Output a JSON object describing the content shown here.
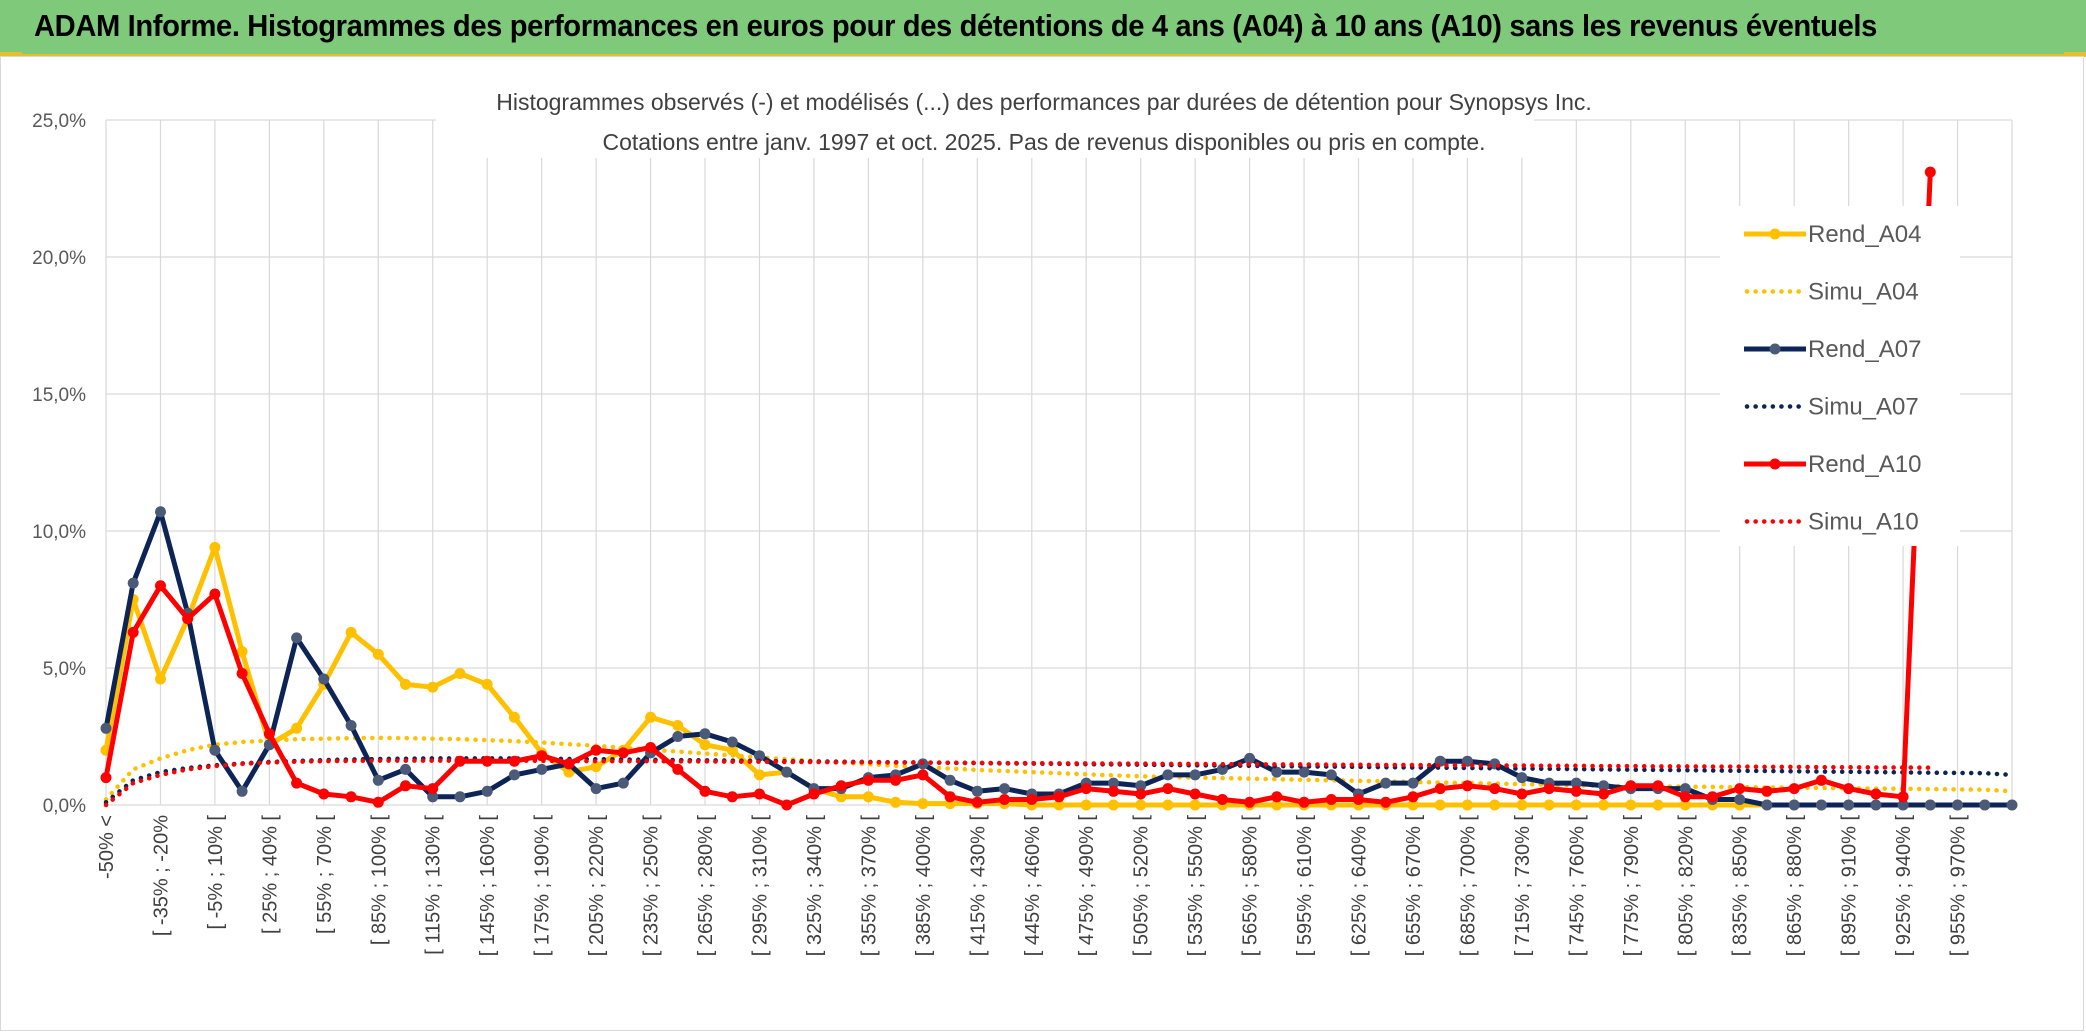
{
  "banner": {
    "title": "ADAM Informe. Histogrammes des performances en euros pour des détentions de 4 ans (A04) à 10 ans (A10) sans les revenus éventuels"
  },
  "colors": {
    "A04": "#ffc000",
    "A07": "#0d2457",
    "A07_marker": "#4a5a78",
    "A10": "#ff0000",
    "banner": "#7ec97a",
    "grid": "#d9d9d9"
  },
  "chart_data": {
    "type": "line",
    "title": "Histogrammes observés (-) et modélisés (...) des performances par durées de détention pour Synopsys Inc.",
    "subtitle": "Cotations entre janv. 1997 et oct. 2025. Pas de revenus disponibles ou pris en compte.",
    "ylim": [
      0,
      25
    ],
    "y_ticks": [
      "0,0%",
      "5,0%",
      "10,0%",
      "15,0%",
      "20,0%",
      "25,0%"
    ],
    "grid": true,
    "legend_position": "right",
    "x_tick_labels": [
      "-50% <",
      "[ -35% ; -20%",
      "[ -5% ; 10% [",
      "[ 25% ; 40% [",
      "[ 55% ; 70% [",
      "[ 85% ; 100% [",
      "[ 115% ; 130% [",
      "[ 145% ; 160% [",
      "[ 175% ; 190% [",
      "[ 205% ; 220% [",
      "[ 235% ; 250% [",
      "[ 265% ; 280% [",
      "[ 295% ; 310% [",
      "[ 325% ; 340% [",
      "[ 355% ; 370% [",
      "[ 385% ; 400% [",
      "[ 415% ; 430% [",
      "[ 445% ; 460% [",
      "[ 475% ; 490% [",
      "[ 505% ; 520% [",
      "[ 535% ; 550% [",
      "[ 565% ; 580% [",
      "[ 595% ; 610% [",
      "[ 625% ; 640% [",
      "[ 655% ; 670% [",
      "[ 685% ; 700% [",
      "[ 715% ; 730% [",
      "[ 745% ; 760% [",
      "[ 775% ; 790% [",
      "[ 805% ; 820% [",
      "[ 835% ; 850% [",
      "[ 865% ; 880% [",
      "[ 895% ; 910% [",
      "[ 925% ; 940% [",
      "[ 955% ; 970% ["
    ],
    "series": [
      {
        "name": "Rend_A04",
        "style": "solid",
        "color": "#ffc000",
        "values": [
          2.0,
          7.5,
          4.6,
          6.8,
          9.4,
          5.6,
          2.2,
          2.8,
          4.4,
          6.3,
          5.5,
          4.4,
          4.3,
          4.8,
          4.4,
          3.2,
          1.9,
          1.2,
          1.4,
          2.0,
          3.2,
          2.9,
          2.2,
          2.0,
          1.1,
          1.2,
          0.6,
          0.3,
          0.3,
          0.1,
          0.05,
          0.05,
          0.05,
          0.05,
          0,
          0,
          0,
          0,
          0,
          0,
          0,
          0,
          0,
          0,
          0,
          0,
          0,
          0,
          0,
          0,
          0,
          0,
          0,
          0,
          0,
          0,
          0,
          0,
          0,
          0,
          0,
          0,
          0,
          0,
          0,
          0,
          0,
          0,
          0,
          0,
          0
        ]
      },
      {
        "name": "Simu_A04",
        "style": "dotted",
        "color": "#ffc000",
        "values": [
          0.2,
          1.3,
          1.7,
          2.0,
          2.2,
          2.3,
          2.35,
          2.4,
          2.42,
          2.44,
          2.45,
          2.44,
          2.42,
          2.4,
          2.37,
          2.33,
          2.28,
          2.22,
          2.16,
          2.09,
          2.02,
          1.95,
          1.88,
          1.81,
          1.74,
          1.67,
          1.61,
          1.55,
          1.49,
          1.43,
          1.38,
          1.33,
          1.28,
          1.24,
          1.2,
          1.16,
          1.12,
          1.08,
          1.05,
          1.02,
          1.0,
          0.98,
          0.96,
          0.94,
          0.92,
          0.9,
          0.88,
          0.86,
          0.84,
          0.82,
          0.8,
          0.78,
          0.76,
          0.74,
          0.72,
          0.7,
          0.69,
          0.68,
          0.67,
          0.66,
          0.65,
          0.64,
          0.63,
          0.62,
          0.61,
          0.6,
          0.59,
          0.58,
          0.57,
          0.56,
          0.5
        ]
      },
      {
        "name": "Rend_A07",
        "style": "solid",
        "color": "#0d2457",
        "values": [
          2.8,
          8.1,
          10.7,
          7.0,
          2.0,
          0.5,
          2.2,
          6.1,
          4.6,
          2.9,
          0.9,
          1.3,
          0.3,
          0.3,
          0.5,
          1.1,
          1.3,
          1.5,
          0.6,
          0.8,
          1.9,
          2.5,
          2.6,
          2.3,
          1.8,
          1.2,
          0.6,
          0.6,
          1.0,
          1.1,
          1.5,
          0.9,
          0.5,
          0.6,
          0.4,
          0.4,
          0.8,
          0.8,
          0.7,
          1.1,
          1.1,
          1.3,
          1.7,
          1.2,
          1.2,
          1.1,
          0.4,
          0.8,
          0.8,
          1.6,
          1.6,
          1.5,
          1.0,
          0.8,
          0.8,
          0.7,
          0.6,
          0.6,
          0.6,
          0.2,
          0.2,
          0,
          0,
          0,
          0,
          0,
          0,
          0,
          0,
          0,
          0
        ]
      },
      {
        "name": "Simu_A07",
        "style": "dotted",
        "color": "#0d2457",
        "values": [
          0.1,
          0.9,
          1.2,
          1.35,
          1.45,
          1.52,
          1.57,
          1.61,
          1.64,
          1.66,
          1.68,
          1.69,
          1.7,
          1.7,
          1.7,
          1.7,
          1.69,
          1.68,
          1.67,
          1.66,
          1.65,
          1.64,
          1.63,
          1.62,
          1.61,
          1.6,
          1.59,
          1.58,
          1.57,
          1.56,
          1.55,
          1.54,
          1.53,
          1.52,
          1.51,
          1.5,
          1.49,
          1.48,
          1.47,
          1.46,
          1.45,
          1.44,
          1.43,
          1.42,
          1.41,
          1.4,
          1.39,
          1.38,
          1.37,
          1.36,
          1.35,
          1.34,
          1.33,
          1.32,
          1.31,
          1.3,
          1.29,
          1.28,
          1.27,
          1.26,
          1.25,
          1.24,
          1.23,
          1.22,
          1.21,
          1.2,
          1.19,
          1.18,
          1.17,
          1.16,
          1.1
        ]
      },
      {
        "name": "Rend_A10",
        "style": "solid",
        "color": "#ff0000",
        "values": [
          1.0,
          6.3,
          8.0,
          6.8,
          7.7,
          4.8,
          2.6,
          0.8,
          0.4,
          0.3,
          0.1,
          0.7,
          0.6,
          1.6,
          1.6,
          1.6,
          1.8,
          1.5,
          2.0,
          1.9,
          2.1,
          1.3,
          0.5,
          0.3,
          0.4,
          0.0,
          0.4,
          0.7,
          0.9,
          0.9,
          1.1,
          0.3,
          0.1,
          0.2,
          0.2,
          0.3,
          0.6,
          0.5,
          0.4,
          0.6,
          0.4,
          0.2,
          0.1,
          0.3,
          0.1,
          0.2,
          0.2,
          0.1,
          0.3,
          0.6,
          0.7,
          0.6,
          0.4,
          0.6,
          0.5,
          0.4,
          0.7,
          0.7,
          0.3,
          0.3,
          0.6,
          0.5,
          0.6,
          0.9,
          0.6,
          0.4,
          0.3,
          23.1
        ]
      },
      {
        "name": "Simu_A10",
        "style": "dotted",
        "color": "#ff0000",
        "values": [
          0.0,
          0.8,
          1.1,
          1.3,
          1.42,
          1.5,
          1.55,
          1.58,
          1.6,
          1.61,
          1.62,
          1.62,
          1.62,
          1.62,
          1.62,
          1.62,
          1.61,
          1.61,
          1.6,
          1.6,
          1.6,
          1.59,
          1.59,
          1.58,
          1.58,
          1.57,
          1.57,
          1.56,
          1.56,
          1.55,
          1.55,
          1.54,
          1.54,
          1.53,
          1.53,
          1.52,
          1.52,
          1.51,
          1.51,
          1.5,
          1.5,
          1.49,
          1.49,
          1.48,
          1.48,
          1.47,
          1.47,
          1.46,
          1.46,
          1.45,
          1.45,
          1.44,
          1.44,
          1.43,
          1.43,
          1.42,
          1.42,
          1.41,
          1.41,
          1.4,
          1.4,
          1.39,
          1.39,
          1.38,
          1.38,
          1.37,
          1.37,
          1.36
        ]
      }
    ]
  }
}
